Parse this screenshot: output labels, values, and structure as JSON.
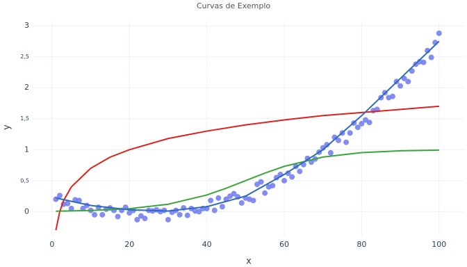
{
  "chart_data": {
    "type": "scatter",
    "title": "Curvas de Exemplo",
    "x_label": "x",
    "y_label": "y",
    "xlim": [
      -5,
      106.5
    ],
    "ylim": [
      -0.4,
      3.08
    ],
    "xticks": [
      0,
      20,
      40,
      60,
      80,
      100
    ],
    "yticks": [
      0,
      {
        "value": 0.5,
        "label": "0,5"
      },
      1,
      {
        "value": 1.5,
        "label": "1,5"
      },
      2,
      {
        "value": 2.5,
        "label": "2,5"
      },
      3
    ],
    "grid": true,
    "series": [
      {
        "mode": "markers",
        "color": "#7580f0",
        "x": [
          1,
          2,
          3,
          4,
          5,
          6,
          7,
          8,
          9,
          10,
          11,
          12,
          13,
          14,
          15,
          16,
          17,
          18,
          19,
          20,
          21,
          22,
          23,
          24,
          25,
          26,
          27,
          28,
          29,
          30,
          31,
          32,
          33,
          34,
          35,
          36,
          37,
          38,
          39,
          40,
          41,
          42,
          43,
          44,
          45,
          46,
          47,
          48,
          49,
          50,
          51,
          52,
          53,
          54,
          55,
          56,
          57,
          58,
          59,
          60,
          61,
          62,
          63,
          64,
          65,
          66,
          67,
          68,
          69,
          70,
          71,
          72,
          73,
          74,
          75,
          76,
          77,
          78,
          79,
          80,
          81,
          82,
          83,
          84,
          85,
          86,
          87,
          88,
          89,
          90,
          91,
          92,
          93,
          94,
          95,
          96,
          97,
          98,
          99,
          100
        ],
        "values": [
          0.2,
          0.26,
          0.12,
          0.13,
          0.05,
          0.19,
          0.18,
          0.05,
          0.1,
          0.02,
          -0.05,
          0.07,
          -0.05,
          0.04,
          0.06,
          0.02,
          -0.08,
          0.02,
          0.07,
          -0.02,
          0.02,
          -0.13,
          -0.07,
          -0.11,
          0.02,
          0.01,
          0.03,
          0.0,
          0.02,
          -0.13,
          -0.01,
          0.02,
          -0.05,
          0.06,
          -0.06,
          0.05,
          0.01,
          0.0,
          0.05,
          0.05,
          0.18,
          0.02,
          0.22,
          0.08,
          0.2,
          0.25,
          0.29,
          0.24,
          0.14,
          0.22,
          0.2,
          0.18,
          0.44,
          0.48,
          0.3,
          0.4,
          0.42,
          0.55,
          0.6,
          0.5,
          0.62,
          0.56,
          0.73,
          0.65,
          0.76,
          0.86,
          0.8,
          0.85,
          0.96,
          1.03,
          1.08,
          0.95,
          1.2,
          1.15,
          1.27,
          1.12,
          1.27,
          1.43,
          1.36,
          1.42,
          1.48,
          1.44,
          1.63,
          1.65,
          1.84,
          1.92,
          1.84,
          1.86,
          2.1,
          2.03,
          2.15,
          2.1,
          2.27,
          2.38,
          2.42,
          2.41,
          2.6,
          2.49,
          2.73,
          2.88
        ]
      },
      {
        "mode": "lines",
        "color": "#e0201c",
        "x": [
          1,
          2,
          3,
          5,
          10,
          15,
          20,
          30,
          40,
          50,
          60,
          70,
          80,
          90,
          100
        ],
        "values": [
          -0.3,
          0.0,
          0.18,
          0.4,
          0.7,
          0.88,
          1.0,
          1.18,
          1.3,
          1.4,
          1.48,
          1.55,
          1.6,
          1.65,
          1.7
        ]
      },
      {
        "mode": "lines",
        "color": "#3aa63a",
        "x": [
          1,
          10,
          20,
          30,
          40,
          45,
          50,
          55,
          60,
          70,
          80,
          90,
          100
        ],
        "values": [
          0.007,
          0.018,
          0.047,
          0.119,
          0.269,
          0.378,
          0.5,
          0.622,
          0.731,
          0.881,
          0.953,
          0.982,
          0.993
        ]
      },
      {
        "mode": "lines",
        "color": "#2f6bbd",
        "x": [
          1,
          10,
          20,
          30,
          40,
          50,
          60,
          70,
          80,
          90,
          100
        ],
        "values": [
          0.22,
          0.1,
          0.03,
          0.01,
          0.08,
          0.25,
          0.6,
          1.0,
          1.55,
          2.15,
          2.75
        ]
      }
    ]
  }
}
